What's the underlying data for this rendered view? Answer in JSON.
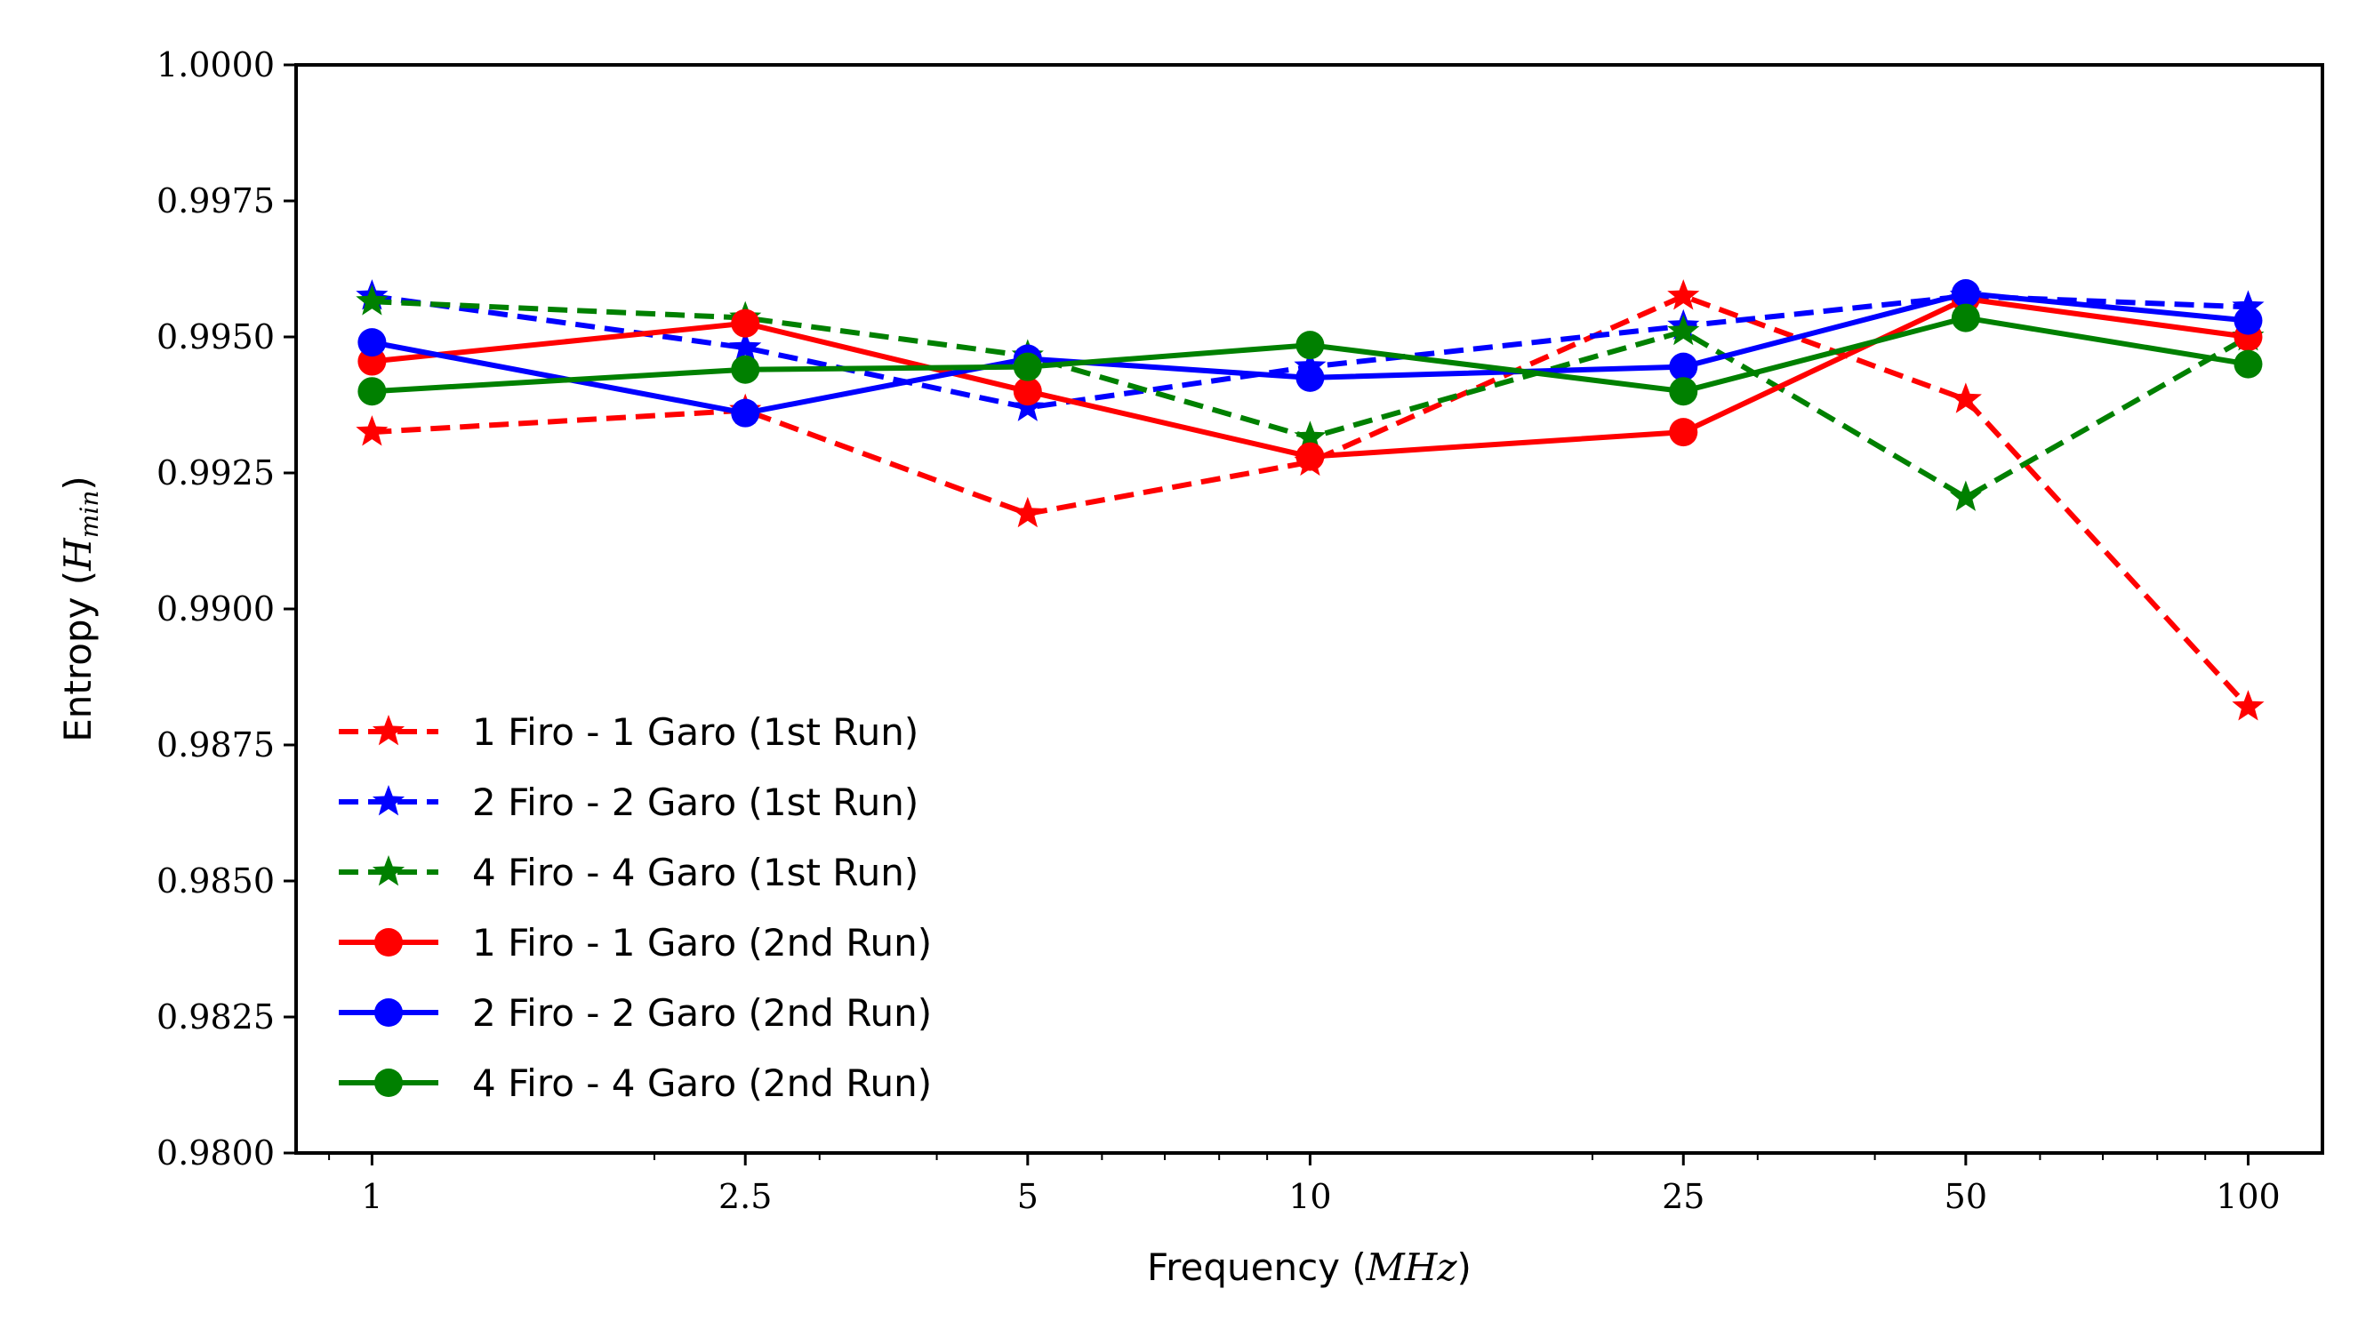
{
  "chart_data": {
    "type": "line",
    "title": "",
    "xlabel": "Frequency",
    "xlabel_unit": "MHz",
    "ylabel": "Entropy",
    "ylabel_symbol": "H",
    "ylabel_subscript": "min",
    "x_scale": "log",
    "x": [
      1,
      2.5,
      5,
      10,
      25,
      50,
      100
    ],
    "x_tick_labels": [
      "1",
      "2.5",
      "5",
      "10",
      "25",
      "50",
      "100"
    ],
    "xlim": [
      0.83,
      120
    ],
    "ylim": [
      0.98,
      1.0
    ],
    "y_ticks": [
      0.98,
      0.9825,
      0.985,
      0.9875,
      0.99,
      0.9925,
      0.995,
      0.9975,
      1.0
    ],
    "y_tick_labels": [
      "0.9800",
      "0.9825",
      "0.9850",
      "0.9875",
      "0.9900",
      "0.9925",
      "0.9950",
      "0.9975",
      "1.0000"
    ],
    "grid": false,
    "legend_position": "lower-left",
    "series": [
      {
        "name": "1 Firo - 1 Garo (1st Run)",
        "color": "#ff0000",
        "style": "dashed",
        "marker": "star",
        "values": [
          0.99325,
          0.99365,
          0.99175,
          0.9927,
          0.99575,
          0.99385,
          0.9882
        ]
      },
      {
        "name": "2 Firo - 2 Garo (1st Run)",
        "color": "#0000ff",
        "style": "dashed",
        "marker": "star",
        "values": [
          0.99575,
          0.9948,
          0.9937,
          0.99445,
          0.9952,
          0.99575,
          0.99555
        ]
      },
      {
        "name": "4 Firo - 4 Garo (1st Run)",
        "color": "#008000",
        "style": "dashed",
        "marker": "star",
        "values": [
          0.99565,
          0.99535,
          0.99465,
          0.99315,
          0.9951,
          0.99205,
          0.995
        ]
      },
      {
        "name": "1 Firo - 1 Garo (2nd Run)",
        "color": "#ff0000",
        "style": "solid",
        "marker": "circle",
        "values": [
          0.99455,
          0.99525,
          0.994,
          0.9928,
          0.99325,
          0.9957,
          0.995
        ]
      },
      {
        "name": "2 Firo - 2 Garo (2nd Run)",
        "color": "#0000ff",
        "style": "solid",
        "marker": "circle",
        "values": [
          0.9949,
          0.9936,
          0.9946,
          0.99425,
          0.99445,
          0.9958,
          0.9953
        ]
      },
      {
        "name": "4 Firo - 4 Garo (2nd Run)",
        "color": "#008000",
        "style": "solid",
        "marker": "circle",
        "values": [
          0.994,
          0.9944,
          0.99445,
          0.99485,
          0.994,
          0.99535,
          0.9945
        ]
      }
    ]
  }
}
